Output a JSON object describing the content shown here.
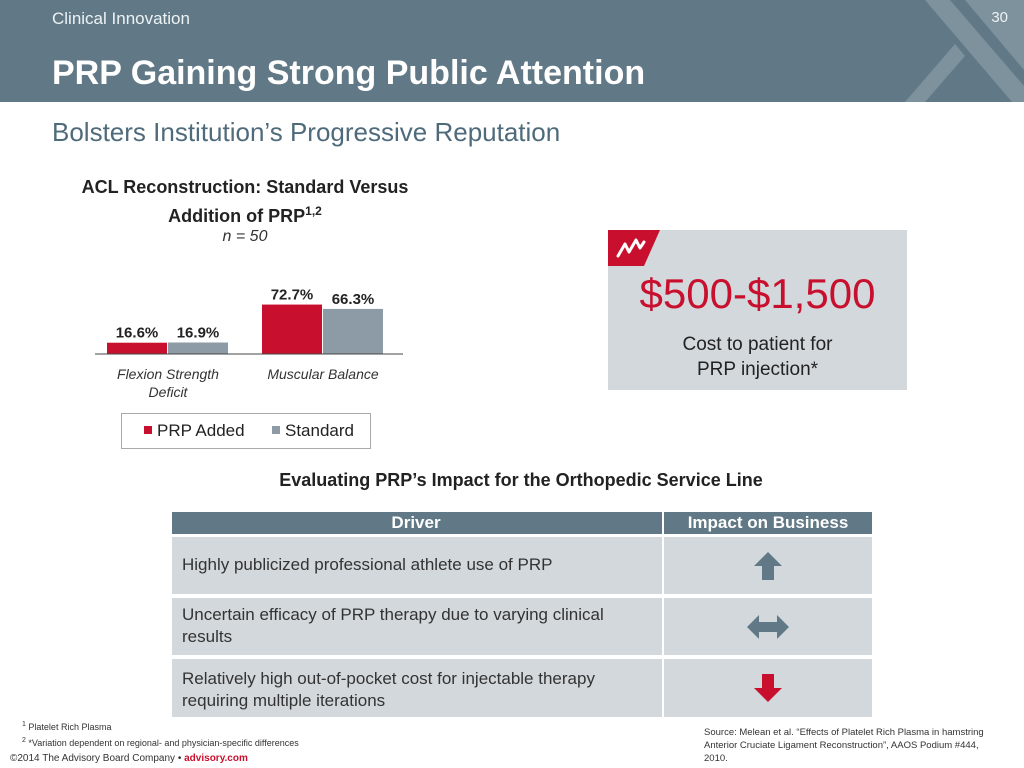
{
  "header": {
    "section": "Clinical Innovation",
    "page_number": "30",
    "title": "PRP Gaining Strong Public Attention"
  },
  "subtitle": "Bolsters Institution’s Progressive Reputation",
  "chart_data": {
    "type": "bar",
    "title_line1": "ACL Reconstruction: Standard Versus",
    "title_line2": "Addition of PRP",
    "title_sup": "1,2",
    "annotation": "n = 50",
    "categories": [
      "Flexion Strength Deficit",
      "Muscular Balance"
    ],
    "category_lines": [
      [
        "Flexion Strength",
        "Deficit"
      ],
      [
        "Muscular Balance"
      ]
    ],
    "series": [
      {
        "name": "PRP Added",
        "values": [
          16.6,
          72.7
        ],
        "labels": [
          "16.6%",
          "72.7%"
        ],
        "color": "#c8102e"
      },
      {
        "name": "Standard",
        "values": [
          16.9,
          66.3
        ],
        "labels": [
          "16.9%",
          "66.3%"
        ],
        "color": "#8c9ba5"
      }
    ],
    "ylim": [
      0,
      100
    ],
    "grid": false,
    "legend_position": "bottom"
  },
  "callout": {
    "price": "$500-$1,500",
    "caption_line1": "Cost to patient for",
    "caption_line2": "PRP injection*",
    "icon": "trend-zigzag-icon",
    "accent": "#c8102e"
  },
  "table": {
    "title": "Evaluating PRP’s Impact for the Orthopedic Service Line",
    "headers": [
      "Driver",
      "Impact on Business"
    ],
    "rows": [
      {
        "driver": "Highly publicized professional athlete use of PRP",
        "impact": "up-arrow-icon"
      },
      {
        "driver": "Uncertain efficacy of PRP therapy due to varying clinical results",
        "impact": "left-right-arrow-icon"
      },
      {
        "driver": "Relatively high out-of-pocket cost for injectable therapy requiring multiple iterations",
        "impact": "down-arrow-icon"
      }
    ]
  },
  "footnotes": {
    "note1_num": "1",
    "note1": "Platelet Rich Plasma",
    "note2_num": "2",
    "note2": "*Variation dependent on regional- and physician-specific differences"
  },
  "copyright": {
    "text": "©2014 The Advisory Board Company •",
    "site": "advisory.com"
  },
  "source": "Source: Melean et al. “Effects of Platelet Rich Plasma in hamstring Anterior Cruciate Ligament Reconstruction”, AAOS Podium #444, 2010.",
  "colors": {
    "header_bg": "#617986",
    "accent_red": "#c8102e",
    "standard_gray": "#8c9ba5",
    "panel_gray": "#d3d8dc",
    "up_arrow": "#617986",
    "down_arrow": "#c8102e"
  }
}
